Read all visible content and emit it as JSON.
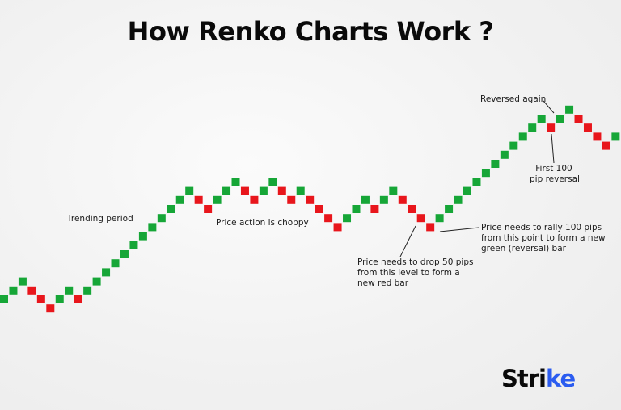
{
  "title": "How Renko Charts Work ?",
  "colors": {
    "up": "#16a637",
    "down": "#e8161c",
    "logo_accent": "#2b5cf0"
  },
  "bricks": {
    "levels": [
      0,
      1,
      2,
      1,
      0,
      -1,
      0,
      1,
      0,
      1,
      2,
      3,
      4,
      5,
      6,
      7,
      8,
      9,
      10,
      11,
      12,
      11,
      10,
      11,
      12,
      13,
      12,
      11,
      12,
      13,
      12,
      11,
      12,
      11,
      10,
      9,
      8,
      9,
      10,
      11,
      10,
      11,
      12,
      11,
      10,
      9,
      8,
      9,
      10,
      11,
      12,
      13,
      14,
      15,
      16,
      17,
      18,
      19,
      20,
      19,
      20,
      21,
      20,
      19,
      18,
      17,
      18
    ],
    "colors": "GGGRRRGGRGGGGGGGGGGGGRRGGGRRGGRRGRRRRGGGRGGRRRRGGGGGGGGGGGGRGGRRRRG"
  },
  "annotations": {
    "trending": "Trending period",
    "choppy": "Price action is choppy",
    "drop": [
      "Price needs to drop 50 pips",
      "from this level to form a",
      "new red bar"
    ],
    "rally": [
      "Price needs to rally 100 pips",
      "from this point to form a new",
      "green (reversal) bar"
    ],
    "reversed_again": "Reversed again",
    "first_reversal": [
      "First 100",
      "pip reversal"
    ]
  },
  "logo": {
    "text_main": "Stri",
    "text_accent": "ke"
  }
}
